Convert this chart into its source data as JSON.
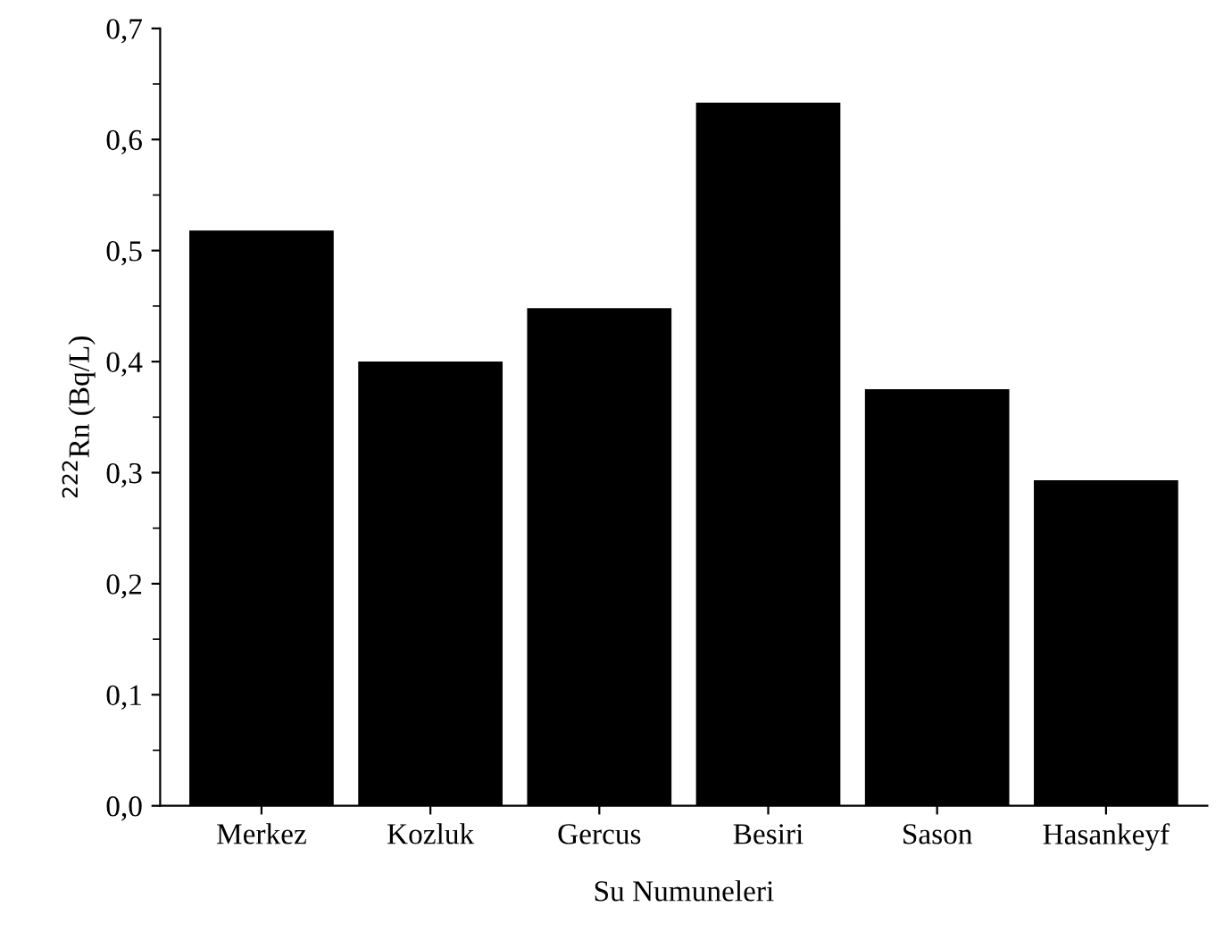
{
  "chart_data": {
    "type": "bar",
    "xlabel": "Su Numuneleri",
    "ylabel": "$^{222}$Rn (Bq/L)",
    "categories": [
      "Merkez",
      "Kozluk",
      "Gercus",
      "Besiri",
      "Sason",
      "Hasankeyf"
    ],
    "values": [
      0.517,
      0.399,
      0.447,
      0.632,
      0.374,
      0.292
    ],
    "color": "#000000",
    "ylim": [
      0,
      0.7
    ],
    "yticks": [
      {
        "value": 0,
        "label": "0,0"
      },
      {
        "value": 0.1,
        "label": "0,1"
      },
      {
        "value": 0.2,
        "label": "0,2"
      },
      {
        "value": 0.3,
        "label": "0,3"
      },
      {
        "value": 0.4,
        "label": "0,4"
      },
      {
        "value": 0.5,
        "label": "0,5"
      },
      {
        "value": 0.6,
        "label": "0,6"
      },
      {
        "value": 0.7,
        "label": "0,7"
      }
    ],
    "grid": false
  }
}
